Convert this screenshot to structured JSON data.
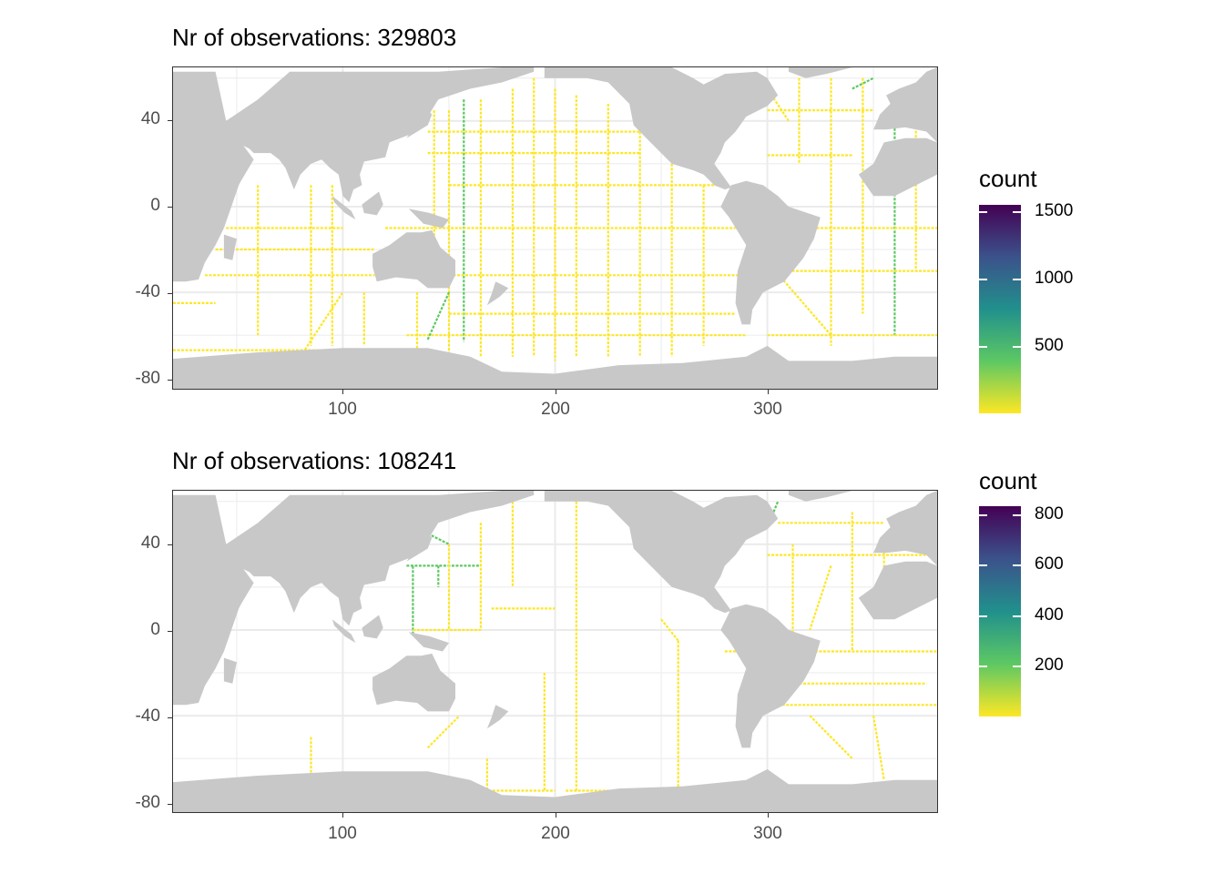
{
  "panels": [
    {
      "title": "Nr of observations: 329803",
      "legend": {
        "title": "count",
        "max": 1600,
        "breaks": [
          "1500",
          "1000",
          "500"
        ]
      }
    },
    {
      "title": "Nr of observations: 108241",
      "legend": {
        "title": "count",
        "max": 850,
        "breaks": [
          "800",
          "600",
          "400",
          "200"
        ]
      }
    }
  ],
  "axes": {
    "x_ticks": [
      "100",
      "200",
      "300"
    ],
    "y_ticks": [
      "40",
      "0",
      "-40",
      "-80"
    ],
    "x_range": [
      20,
      380
    ],
    "y_range": [
      -85,
      65
    ]
  },
  "colors": {
    "land": "#c8c8c8",
    "grid": "#ebebeb",
    "track": "#fde725",
    "track_high": "#5dc863"
  }
}
